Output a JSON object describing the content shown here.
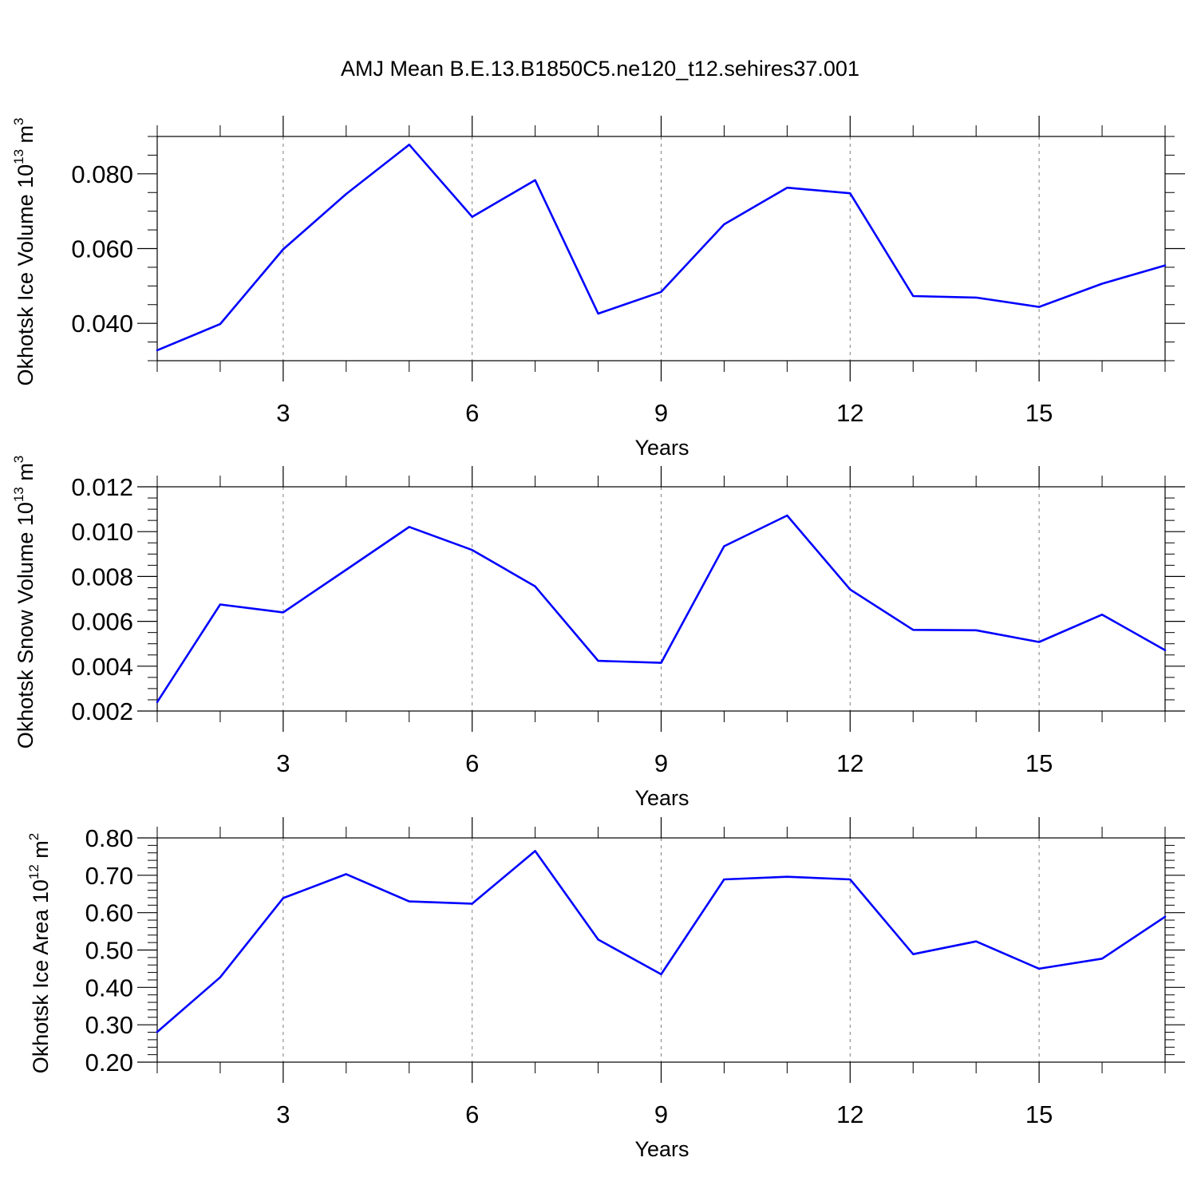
{
  "page_title": "AMJ Mean B.E.13.B1850C5.ne120_t12.sehires37.001",
  "colors": {
    "line": "#0000ff",
    "axis": "#000000",
    "grid": "#7f7f7f",
    "background": "#ffffff"
  },
  "chart_data": [
    {
      "type": "line",
      "title": "AMJ Mean B.E.13.B1850C5.ne120_t12.sehires37.001",
      "xlabel": "Years",
      "ylabel": {
        "base": "Okhotsk Ice Volume 10",
        "exponent": "13",
        "unit": " m",
        "unit_exponent": "3"
      },
      "xlim": [
        1,
        17
      ],
      "ylim": [
        0.03,
        0.09
      ],
      "xticks": [
        3,
        6,
        9,
        12,
        15
      ],
      "xtick_labels": [
        "3",
        "6",
        "9",
        "12",
        "15"
      ],
      "yticks": [
        0.04,
        0.06,
        0.08
      ],
      "ytick_labels": [
        "0.040",
        "0.060",
        "0.080"
      ],
      "x_minor_step": 1,
      "y_minor_step": 0.005,
      "grid": "vertical-dashed-at-major-x",
      "x": [
        1,
        2,
        3,
        4,
        5,
        6,
        7,
        8,
        9,
        10,
        11,
        12,
        13,
        14,
        15,
        16,
        17
      ],
      "series": [
        {
          "values": [
            0.0328,
            0.0398,
            0.0598,
            0.0746,
            0.0878,
            0.0685,
            0.0783,
            0.0426,
            0.0484,
            0.0665,
            0.0763,
            0.0748,
            0.0473,
            0.0469,
            0.0444,
            0.0506,
            0.0555
          ]
        }
      ]
    },
    {
      "type": "line",
      "xlabel": "Years",
      "ylabel": {
        "base": "Okhotsk Snow Volume 10",
        "exponent": "13",
        "unit": " m",
        "unit_exponent": "3"
      },
      "xlim": [
        1,
        17
      ],
      "ylim": [
        0.002,
        0.012
      ],
      "xticks": [
        3,
        6,
        9,
        12,
        15
      ],
      "xtick_labels": [
        "3",
        "6",
        "9",
        "12",
        "15"
      ],
      "yticks": [
        0.002,
        0.004,
        0.006,
        0.008,
        0.01,
        0.012
      ],
      "ytick_labels": [
        "0.002",
        "0.004",
        "0.006",
        "0.008",
        "0.010",
        "0.012"
      ],
      "x_minor_step": 1,
      "y_minor_step": 0.0005,
      "grid": "vertical-dashed-at-major-x",
      "x": [
        1,
        2,
        3,
        4,
        5,
        6,
        7,
        8,
        9,
        10,
        11,
        12,
        13,
        14,
        15,
        16,
        17
      ],
      "series": [
        {
          "values": [
            0.0024,
            0.00675,
            0.0064,
            0.0083,
            0.01021,
            0.00918,
            0.00756,
            0.00424,
            0.00415,
            0.00935,
            0.01072,
            0.00742,
            0.00562,
            0.0056,
            0.00508,
            0.0063,
            0.00471
          ]
        }
      ]
    },
    {
      "type": "line",
      "xlabel": "Years",
      "ylabel": {
        "base": "Okhotsk Ice Area 10",
        "exponent": "12",
        "unit": " m",
        "unit_exponent": "2"
      },
      "xlim": [
        1,
        17
      ],
      "ylim": [
        0.2,
        0.8
      ],
      "xticks": [
        3,
        6,
        9,
        12,
        15
      ],
      "xtick_labels": [
        "3",
        "6",
        "9",
        "12",
        "15"
      ],
      "yticks": [
        0.2,
        0.3,
        0.4,
        0.5,
        0.6,
        0.7,
        0.8
      ],
      "ytick_labels": [
        "0.20",
        "0.30",
        "0.40",
        "0.50",
        "0.60",
        "0.70",
        "0.80"
      ],
      "x_minor_step": 1,
      "y_minor_step": 0.02,
      "grid": "vertical-dashed-at-major-x",
      "x": [
        1,
        2,
        3,
        4,
        5,
        6,
        7,
        8,
        9,
        10,
        11,
        12,
        13,
        14,
        15,
        16,
        17
      ],
      "series": [
        {
          "values": [
            0.281,
            0.427,
            0.639,
            0.703,
            0.63,
            0.624,
            0.765,
            0.528,
            0.435,
            0.689,
            0.696,
            0.689,
            0.489,
            0.523,
            0.45,
            0.477,
            0.589
          ]
        }
      ]
    }
  ]
}
